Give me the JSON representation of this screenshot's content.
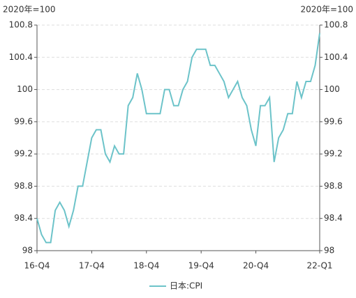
{
  "chart_data": {
    "type": "line",
    "y_unit": "2020年=100",
    "y2_unit": "2020年=100",
    "categories": [
      "16-Q4",
      null,
      null,
      null,
      null,
      null,
      null,
      null,
      null,
      null,
      null,
      null,
      "17-Q4",
      null,
      null,
      null,
      null,
      null,
      null,
      null,
      null,
      null,
      null,
      null,
      "18-Q4",
      null,
      null,
      null,
      null,
      null,
      null,
      null,
      null,
      null,
      null,
      null,
      "19-Q4",
      null,
      null,
      null,
      null,
      null,
      null,
      null,
      null,
      null,
      null,
      null,
      "20-Q4",
      null,
      null,
      null,
      null,
      null,
      null,
      null,
      null,
      null,
      null,
      null,
      null,
      null,
      "22-Q1"
    ],
    "series": [
      {
        "name": "日本:CPI",
        "color": "#6cc3c9",
        "values": [
          98.4,
          98.2,
          98.1,
          98.1,
          98.5,
          98.6,
          98.5,
          98.3,
          98.5,
          98.8,
          98.8,
          99.1,
          99.4,
          99.5,
          99.5,
          99.2,
          99.1,
          99.3,
          99.2,
          99.2,
          99.8,
          99.9,
          100.2,
          100.0,
          99.7,
          99.7,
          99.7,
          99.7,
          100.0,
          100.0,
          99.8,
          99.8,
          100.0,
          100.1,
          100.4,
          100.5,
          100.5,
          100.5,
          100.3,
          100.3,
          100.2,
          100.1,
          99.9,
          100.0,
          100.1,
          99.9,
          99.8,
          99.5,
          99.3,
          99.8,
          99.8,
          99.9,
          99.1,
          99.4,
          99.5,
          99.7,
          99.7,
          100.1,
          99.9,
          100.1,
          100.1,
          100.3,
          100.7
        ]
      }
    ],
    "ylim": [
      98,
      100.8
    ],
    "yticks": [
      98,
      98.4,
      98.8,
      99.2,
      99.6,
      100,
      100.4,
      100.8
    ],
    "y2lim": [
      98,
      100.8
    ],
    "y2ticks": [
      98,
      98.4,
      98.8,
      99.2,
      99.6,
      100,
      100.4,
      100.8
    ],
    "grid": true
  }
}
